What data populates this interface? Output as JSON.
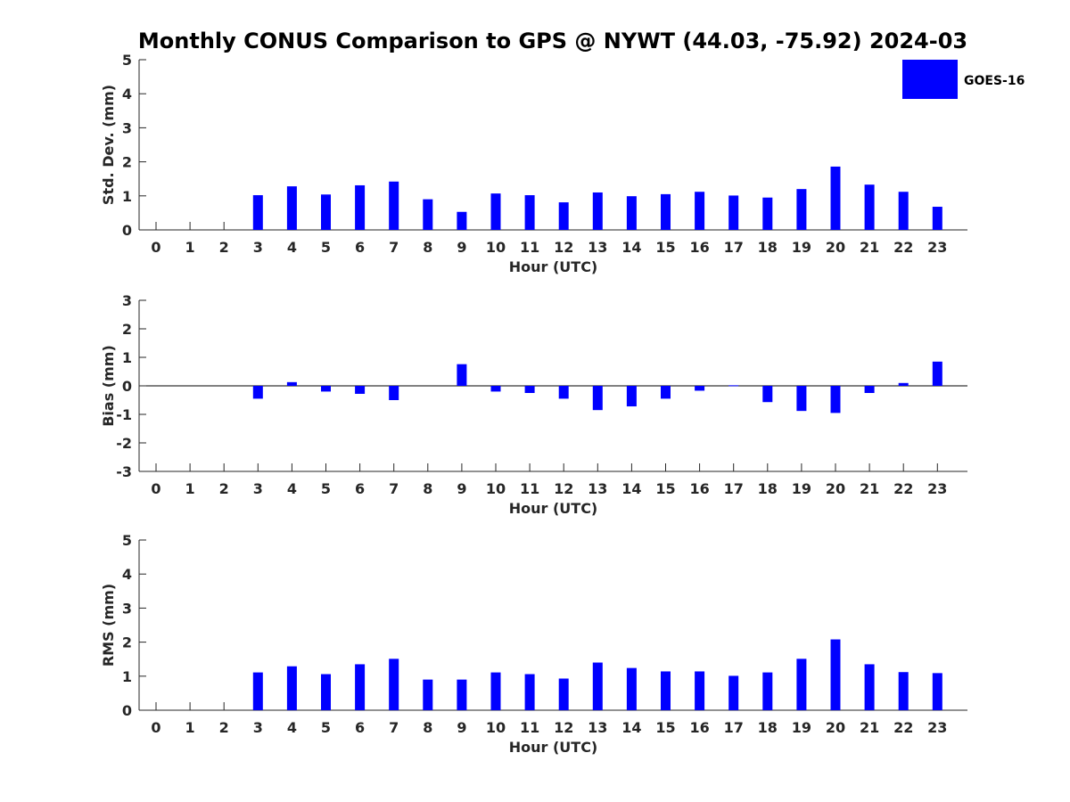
{
  "chart_data": [
    {
      "type": "bar",
      "title": "Monthly CONUS Comparison to GPS @ NYWT (44.03, -75.92) 2024-03",
      "xlabel": "Hour (UTC)",
      "ylabel": "Std. Dev. (mm)",
      "ylim": [
        0,
        5
      ],
      "yticks": [
        "0",
        "1",
        "2",
        "3",
        "4",
        "5"
      ],
      "categories": [
        "0",
        "1",
        "2",
        "3",
        "4",
        "5",
        "6",
        "7",
        "8",
        "9",
        "10",
        "11",
        "12",
        "13",
        "14",
        "15",
        "16",
        "17",
        "18",
        "19",
        "20",
        "21",
        "22",
        "23"
      ],
      "series": [
        {
          "name": "GOES-16",
          "color": "#0000ff",
          "values": [
            null,
            null,
            null,
            1.02,
            1.28,
            1.04,
            1.31,
            1.42,
            0.9,
            0.53,
            1.07,
            1.02,
            0.81,
            1.1,
            0.99,
            1.05,
            1.12,
            1.01,
            0.95,
            1.2,
            1.86,
            1.33,
            1.12,
            0.68
          ]
        }
      ],
      "legend": {
        "position": "top-right",
        "labels": [
          "GOES-16"
        ]
      }
    },
    {
      "type": "bar",
      "xlabel": "Hour (UTC)",
      "ylabel": "Bias (mm)",
      "ylim": [
        -3,
        3
      ],
      "yticks": [
        "-3",
        "-2",
        "-1",
        "0",
        "1",
        "2",
        "3"
      ],
      "categories": [
        "0",
        "1",
        "2",
        "3",
        "4",
        "5",
        "6",
        "7",
        "8",
        "9",
        "10",
        "11",
        "12",
        "13",
        "14",
        "15",
        "16",
        "17",
        "18",
        "19",
        "20",
        "21",
        "22",
        "23"
      ],
      "series": [
        {
          "name": "GOES-16",
          "color": "#0000ff",
          "values": [
            null,
            null,
            null,
            -0.45,
            0.13,
            -0.2,
            -0.28,
            -0.5,
            null,
            0.76,
            -0.2,
            -0.25,
            -0.45,
            -0.85,
            -0.72,
            -0.45,
            -0.17,
            0.02,
            -0.57,
            -0.88,
            -0.95,
            -0.25,
            0.1,
            0.85
          ]
        }
      ]
    },
    {
      "type": "bar",
      "xlabel": "Hour (UTC)",
      "ylabel": "RMS (mm)",
      "ylim": [
        0,
        5
      ],
      "yticks": [
        "0",
        "1",
        "2",
        "3",
        "4",
        "5"
      ],
      "categories": [
        "0",
        "1",
        "2",
        "3",
        "4",
        "5",
        "6",
        "7",
        "8",
        "9",
        "10",
        "11",
        "12",
        "13",
        "14",
        "15",
        "16",
        "17",
        "18",
        "19",
        "20",
        "21",
        "22",
        "23"
      ],
      "series": [
        {
          "name": "GOES-16",
          "color": "#0000ff",
          "values": [
            null,
            null,
            null,
            1.11,
            1.29,
            1.06,
            1.35,
            1.51,
            0.9,
            0.9,
            1.11,
            1.06,
            0.93,
            1.4,
            1.24,
            1.14,
            1.14,
            1.01,
            1.11,
            1.51,
            2.08,
            1.35,
            1.12,
            1.09
          ]
        }
      ]
    }
  ]
}
